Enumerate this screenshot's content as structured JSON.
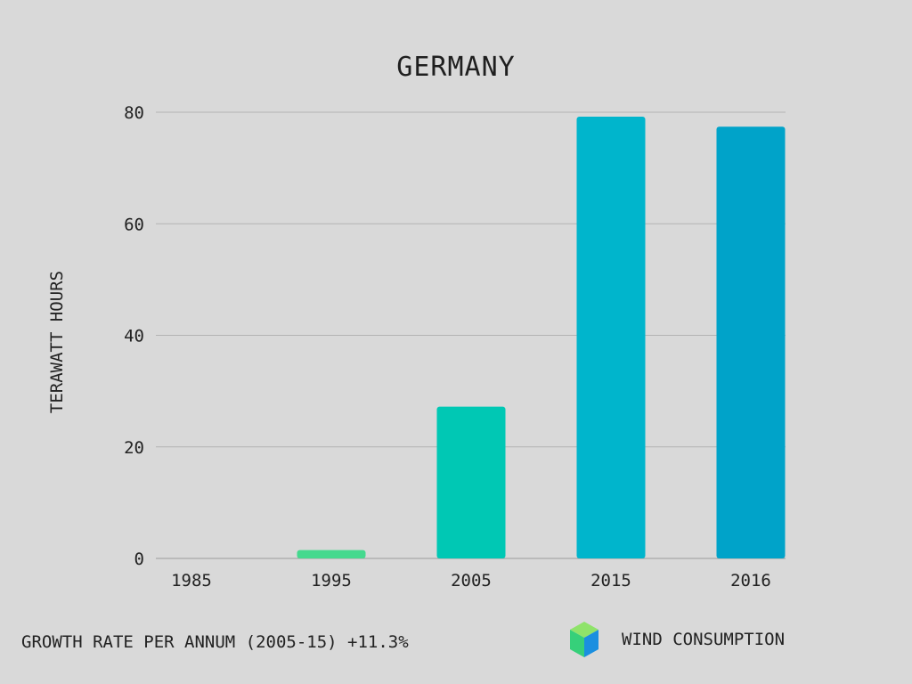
{
  "chart_data": {
    "type": "bar",
    "title": "GERMANY",
    "ylabel": "TERAWATT HOURS",
    "xlabel": "",
    "categories": [
      "1985",
      "1995",
      "2005",
      "2015",
      "2016"
    ],
    "values": [
      0,
      1.5,
      27.2,
      79.2,
      77.4
    ],
    "colors": [
      "#4ddc8e",
      "#45d98e",
      "#00c8b4",
      "#00b5cc",
      "#00a3c9"
    ],
    "ylim": [
      0,
      80
    ],
    "yticks": [
      0,
      20,
      40,
      60,
      80
    ],
    "grid": true
  },
  "footer": {
    "growth_text": "GROWTH RATE PER ANNUM (2005-15) +11.3%"
  },
  "legend": {
    "label": "WIND CONSUMPTION",
    "icon": "cube-icon",
    "icon_colors": {
      "top": "#8fe36a",
      "left": "#36d07a",
      "right": "#1a8fe0"
    }
  }
}
